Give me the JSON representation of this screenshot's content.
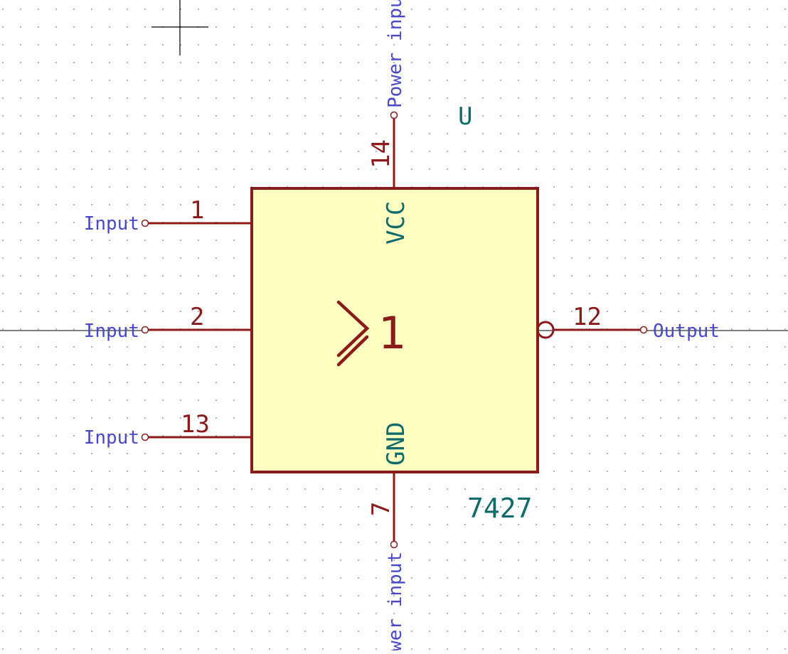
{
  "component": {
    "reference": "U",
    "value": "7427",
    "body_symbol": "1",
    "colors": {
      "body_fill": "#ffffc2",
      "body_stroke": "#8b1a1a",
      "pin": "#8b1a1a",
      "pin_name": "#0f6b6b",
      "electrical_type": "#4848c8",
      "grid_dot": "#b4b4b4",
      "wire": "#000000"
    }
  },
  "pins": [
    {
      "number": "1",
      "name": "",
      "electrical_type": "Input"
    },
    {
      "number": "2",
      "name": "",
      "electrical_type": "Input"
    },
    {
      "number": "13",
      "name": "",
      "electrical_type": "Input"
    },
    {
      "number": "12",
      "name": "",
      "electrical_type": "Output"
    },
    {
      "number": "14",
      "name": "VCC",
      "electrical_type": "Power input"
    },
    {
      "number": "7",
      "name": "GND",
      "electrical_type": "Power input"
    }
  ]
}
